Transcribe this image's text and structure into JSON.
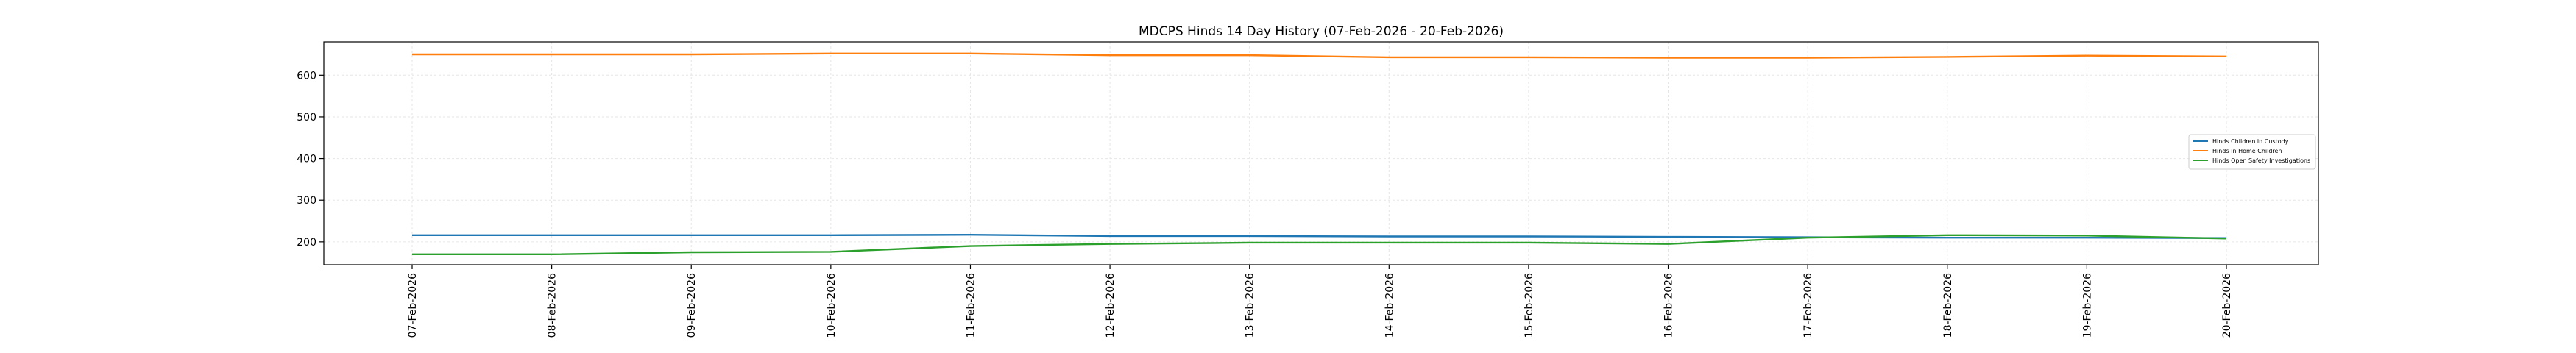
{
  "chart_data": {
    "type": "line",
    "title": "MDCPS Hinds 14 Day History (07-Feb-2026 - 20-Feb-2026)",
    "xlabel": "",
    "ylabel": "",
    "categories": [
      "07-Feb-2026",
      "08-Feb-2026",
      "09-Feb-2026",
      "10-Feb-2026",
      "11-Feb-2026",
      "12-Feb-2026",
      "13-Feb-2026",
      "14-Feb-2026",
      "15-Feb-2026",
      "16-Feb-2026",
      "17-Feb-2026",
      "18-Feb-2026",
      "19-Feb-2026",
      "20-Feb-2026"
    ],
    "y_ticks": [
      200,
      300,
      400,
      500,
      600
    ],
    "ylim": [
      145,
      680
    ],
    "grid": true,
    "legend_position": "center-right",
    "series": [
      {
        "name": "Hinds Children in Custody",
        "color": "#1f77b4",
        "values": [
          216,
          216,
          216,
          216,
          217,
          214,
          214,
          213,
          213,
          212,
          211,
          210,
          210,
          209
        ]
      },
      {
        "name": "Hinds In Home Children",
        "color": "#ff7f0e",
        "values": [
          650,
          650,
          650,
          652,
          652,
          648,
          648,
          643,
          643,
          642,
          642,
          644,
          647,
          645
        ]
      },
      {
        "name": "Hinds Open Safety Investigations",
        "color": "#2ca02c",
        "values": [
          170,
          170,
          175,
          176,
          190,
          195,
          198,
          198,
          198,
          195,
          210,
          216,
          215,
          208
        ]
      }
    ]
  }
}
